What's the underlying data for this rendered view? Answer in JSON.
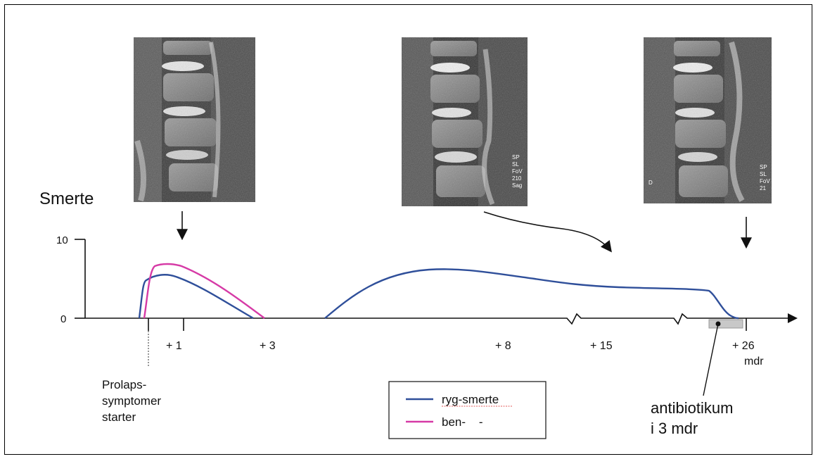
{
  "y_axis": {
    "title": "Smerte",
    "ticks": [
      "10",
      "0"
    ]
  },
  "x_axis": {
    "ticks": [
      "+ 1",
      "+ 3",
      "+ 8",
      "+ 15",
      "+ 26"
    ],
    "unit": "mdr"
  },
  "annotations": {
    "onset": [
      "Prolaps-",
      "symptomer",
      "starter"
    ],
    "antibiotic": [
      "antibiotikum",
      "i 3 mdr"
    ]
  },
  "legend": [
    {
      "label": "ryg-smerte",
      "color": "#2f4f9a"
    },
    {
      "label": "ben-    -",
      "color": "#d63aa6"
    }
  ],
  "mri_panels": [
    {
      "name": "mri-scan-1",
      "overlay": [
        "",
        "",
        ""
      ]
    },
    {
      "name": "mri-scan-2",
      "overlay": [
        "SP",
        "SL",
        "FoV",
        "210",
        "Sag"
      ]
    },
    {
      "name": "mri-scan-3",
      "overlay": [
        "SP",
        "SL",
        "FoV",
        "21",
        "D"
      ]
    }
  ]
}
